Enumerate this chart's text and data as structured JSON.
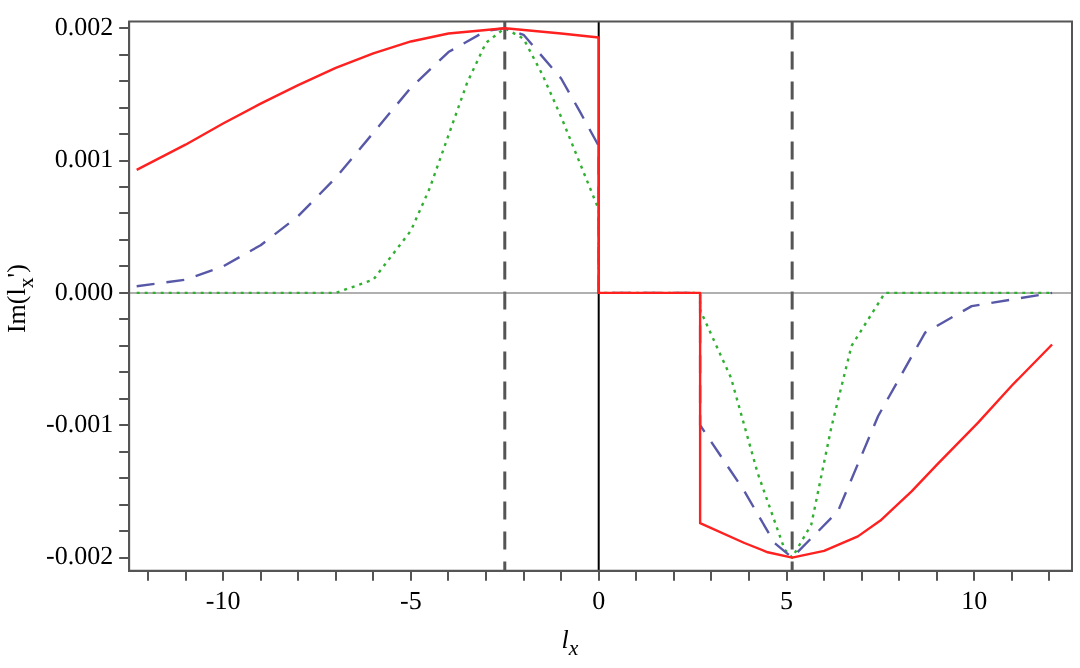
{
  "chart_data": {
    "type": "line",
    "xlabel": "l$_{x}$",
    "ylabel": "Im(l$_{x}$')",
    "xlim": [
      -12.5,
      12.6
    ],
    "ylim": [
      -0.0021,
      0.00205
    ],
    "xticks": [
      {
        "value": -12,
        "label": null
      },
      {
        "value": -11,
        "label": null
      },
      -10,
      {
        "value": -9,
        "label": null
      },
      {
        "value": -8,
        "label": null
      },
      {
        "value": -7,
        "label": null
      },
      {
        "value": -6,
        "label": null
      },
      -5,
      {
        "value": -4,
        "label": null
      },
      {
        "value": -3,
        "label": null
      },
      {
        "value": -2,
        "label": null
      },
      {
        "value": -1,
        "label": null
      },
      0,
      {
        "value": 1,
        "label": null
      },
      {
        "value": 2,
        "label": null
      },
      {
        "value": 3,
        "label": null
      },
      {
        "value": 4,
        "label": null
      },
      5,
      {
        "value": 6,
        "label": null
      },
      {
        "value": 7,
        "label": null
      },
      {
        "value": 8,
        "label": null
      },
      {
        "value": 9,
        "label": null
      },
      10,
      {
        "value": 11,
        "label": null
      },
      {
        "value": 12,
        "label": null
      }
    ],
    "yticks": [
      {
        "value": -0.002,
        "label": "-0.002"
      },
      {
        "value": -0.0018,
        "label": null
      },
      {
        "value": -0.0016,
        "label": null
      },
      {
        "value": -0.0014,
        "label": null
      },
      {
        "value": -0.0012,
        "label": null
      },
      {
        "value": -0.001,
        "label": "-0.001"
      },
      {
        "value": -0.0008,
        "label": null
      },
      {
        "value": -0.0006,
        "label": null
      },
      {
        "value": -0.0004,
        "label": null
      },
      {
        "value": -0.0002,
        "label": null
      },
      {
        "value": 0,
        "label": "0.000"
      },
      {
        "value": 0.0002,
        "label": null
      },
      {
        "value": 0.0004,
        "label": null
      },
      {
        "value": 0.0006,
        "label": null
      },
      {
        "value": 0.0008,
        "label": null
      },
      {
        "value": 0.001,
        "label": "0.001"
      },
      {
        "value": 0.0012,
        "label": null
      },
      {
        "value": 0.0014,
        "label": null
      },
      {
        "value": 0.0016,
        "label": null
      },
      {
        "value": 0.0018,
        "label": null
      },
      {
        "value": 0.002,
        "label": "0.002"
      }
    ],
    "grid": false,
    "legend": false,
    "marker": "none",
    "ref_lines": [
      {
        "axis": "y",
        "value": 0,
        "color": "#b0b0b0",
        "line_style": "solid"
      },
      {
        "axis": "x",
        "value": 0,
        "color": "#000000",
        "line_style": "solid"
      },
      {
        "axis": "x",
        "value": -2.5,
        "color": "#555555",
        "line_style": "dashed"
      },
      {
        "axis": "x",
        "value": 5.15,
        "color": "#555555",
        "line_style": "dashed"
      }
    ],
    "series": [
      {
        "color": "#ff2020",
        "line_style": "solid",
        "x": [
          -12.3,
          -11,
          -10,
          -9,
          -8,
          -7,
          -6,
          -5,
          -4,
          -2.5,
          -1,
          0,
          0,
          2.7,
          2.7,
          3.88,
          4.5,
          5.15,
          6,
          6.9,
          7.5,
          8.33,
          9,
          10.1,
          11,
          12.07
        ],
        "values": [
          0.00093,
          0.00112,
          0.00128,
          0.00143,
          0.00157,
          0.0017,
          0.00181,
          0.0019,
          0.00196,
          0.002,
          0.00196,
          0.00193,
          0,
          0,
          -0.00174,
          -0.00189,
          -0.00196,
          -0.002,
          -0.00195,
          -0.00184,
          -0.00172,
          -0.0015,
          -0.0013,
          -0.00098,
          -0.0007,
          -0.00039
        ]
      },
      {
        "color": "#5858a8",
        "line_style": "dashed",
        "x": [
          -12.3,
          -11,
          -10,
          -9,
          -8,
          -7,
          -6,
          -5,
          -4,
          -3,
          -2.5,
          -2,
          -1,
          -0.5,
          0,
          0,
          2.7,
          2.7,
          3.88,
          4.68,
          5.15,
          6.37,
          7.44,
          8.69,
          9.93,
          12.07
        ],
        "values": [
          5e-05,
          0.0001,
          0.0002,
          0.00036,
          0.00058,
          0.00087,
          0.00121,
          0.00155,
          0.00182,
          0.00198,
          0.002,
          0.00195,
          0.00162,
          0.00137,
          0.00111,
          0,
          0,
          -0.001,
          -0.0015,
          -0.00189,
          -0.002,
          -0.00165,
          -0.00093,
          -0.0003,
          -0.0001,
          0
        ]
      },
      {
        "color": "#30b030",
        "line_style": "dotted",
        "x": [
          -12.3,
          -8,
          -7,
          -6,
          -5,
          -4.5,
          -4,
          -3.5,
          -3,
          -2.5,
          -2,
          -1.5,
          -1,
          -0.5,
          0,
          0,
          2.7,
          2.7,
          3.52,
          4.23,
          4.95,
          5.15,
          5.66,
          6.19,
          6.73,
          7.62,
          12.07
        ],
        "values": [
          0,
          0,
          0,
          0.0001,
          0.00047,
          0.00079,
          0.00119,
          0.00159,
          0.00189,
          0.002,
          0.00192,
          0.00165,
          0.00133,
          0.00098,
          0.00063,
          0,
          0,
          -0.00013,
          -0.00064,
          -0.00136,
          -0.00194,
          -0.002,
          -0.00175,
          -0.00102,
          -0.0004,
          0,
          0
        ]
      }
    ]
  }
}
